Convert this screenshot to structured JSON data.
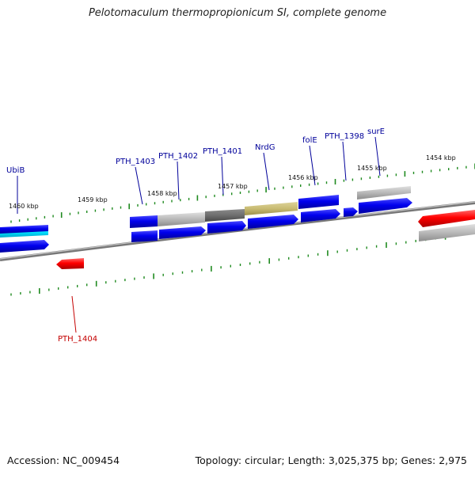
{
  "title": "Pelotomaculum thermopropionicum SI, complete genome",
  "footer": {
    "accession": "Accession: NC_009454",
    "topology": "Topology: circular; Length: 3,025,375 bp; Genes: 2,975"
  },
  "colors": {
    "gene_forward": "#0000ee",
    "gene_reverse": "#ff0000",
    "label_forward": "#00009a",
    "label_reverse": "#c40000",
    "tick": "#1f8a1f",
    "backbone": "#8a8a8a",
    "highlight_cyan": "#00e0ff",
    "gray_feature": "#b8b8b8",
    "dark_feature": "#6e6e6e",
    "olive_feature": "#c8bb72"
  },
  "scale_labels": [
    "1460 kbp",
    "1459 kbp",
    "1458 kbp",
    "1457 kbp",
    "1456 kbp",
    "1455 kbp",
    "1454 kbp"
  ],
  "gene_labels": {
    "forward": [
      "UbiB",
      "PTH_1403",
      "PTH_1402",
      "PTH_1401",
      "NrdG",
      "folE",
      "PTH_1398",
      "surE"
    ],
    "reverse": [
      "PTH_1404"
    ]
  }
}
